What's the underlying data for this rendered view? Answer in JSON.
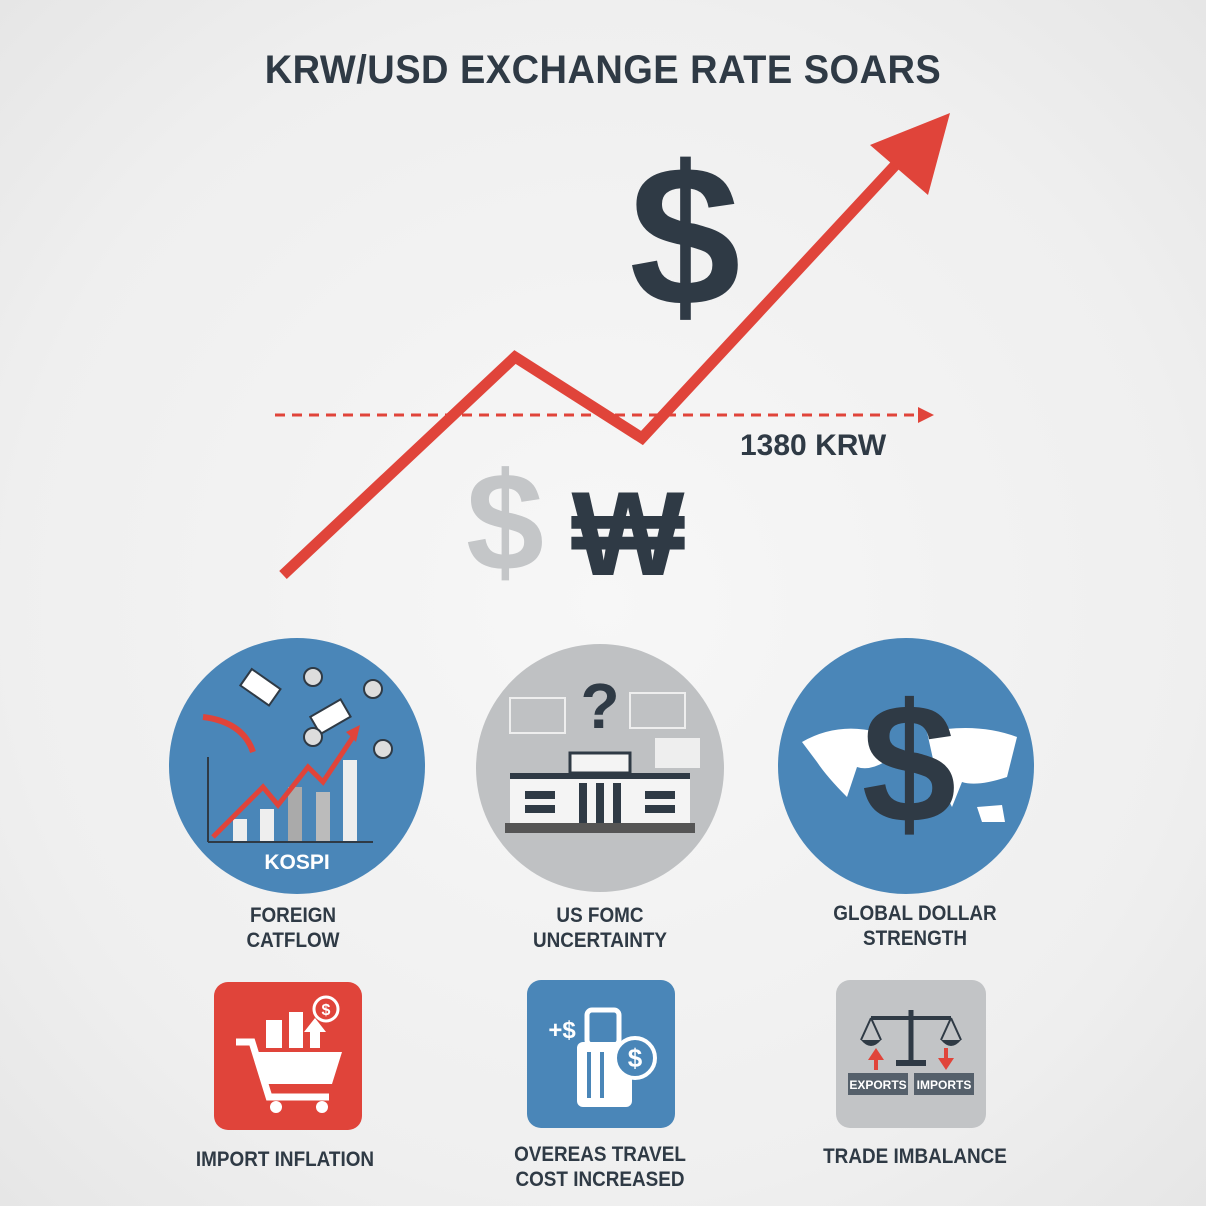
{
  "title": "KRW/USD EXCHANGE RATE SOARS",
  "main_chart": {
    "threshold_label": "1380 KRW",
    "currency_symbols": [
      "$",
      "$",
      "₩"
    ],
    "colors": {
      "trend": "#e0443a",
      "dark": "#2f3a45",
      "faded": "#c4c6c8"
    }
  },
  "factors": [
    {
      "label_line1": "FOREIGN",
      "label_line2": "CATFLOW",
      "icon_text": "KOSPI",
      "icon": "kospi-chart-icon",
      "color": "#4a86b8"
    },
    {
      "label_line1": "US FOMC",
      "label_line2": "UNCERTAINTY",
      "icon_text": "?",
      "icon": "federal-reserve-building-icon",
      "color": "#bfc1c3"
    },
    {
      "label_line1": "GLOBAL DOLLAR",
      "label_line2": "STRENGTH",
      "icon_text": "$",
      "icon": "world-dollar-icon",
      "color": "#4a86b8"
    }
  ],
  "effects": [
    {
      "label_line1": "IMPORT INFLATION",
      "label_line2": "",
      "icon": "shopping-cart-icon",
      "color": "#e0443a"
    },
    {
      "label_line1": "OVEREAS TRAVEL",
      "label_line2": "COST INCREASED",
      "icon_text": "+$",
      "icon": "luggage-icon",
      "color": "#4a86b8"
    },
    {
      "label_line1": "TRADE IMBALANCE",
      "label_line2": "",
      "icon": "scale-icon",
      "color": "#c2c4c6",
      "tags": [
        "EXPORTS",
        "IMPORTS"
      ]
    }
  ]
}
